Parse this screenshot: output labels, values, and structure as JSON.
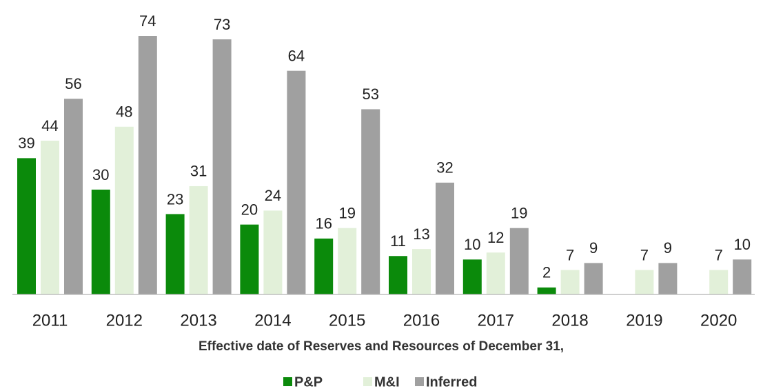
{
  "chart_data": {
    "type": "bar",
    "x_label": "Effective date of Reserves and Resources of December 31,",
    "categories": [
      "2011",
      "2012",
      "2013",
      "2014",
      "2015",
      "2016",
      "2017",
      "2018",
      "2019",
      "2020"
    ],
    "series": [
      {
        "name": "P&P",
        "color": "#0b8a0b",
        "values": [
          39,
          30,
          23,
          20,
          16,
          11,
          10,
          2,
          null,
          null
        ]
      },
      {
        "name": "M&I",
        "color": "#e2f0d9",
        "values": [
          44,
          48,
          31,
          24,
          19,
          13,
          12,
          7,
          7,
          7
        ]
      },
      {
        "name": "Inferred",
        "color": "#a0a0a0",
        "values": [
          56,
          74,
          73,
          64,
          53,
          32,
          19,
          9,
          9,
          10
        ]
      }
    ],
    "legend": "bottom"
  }
}
